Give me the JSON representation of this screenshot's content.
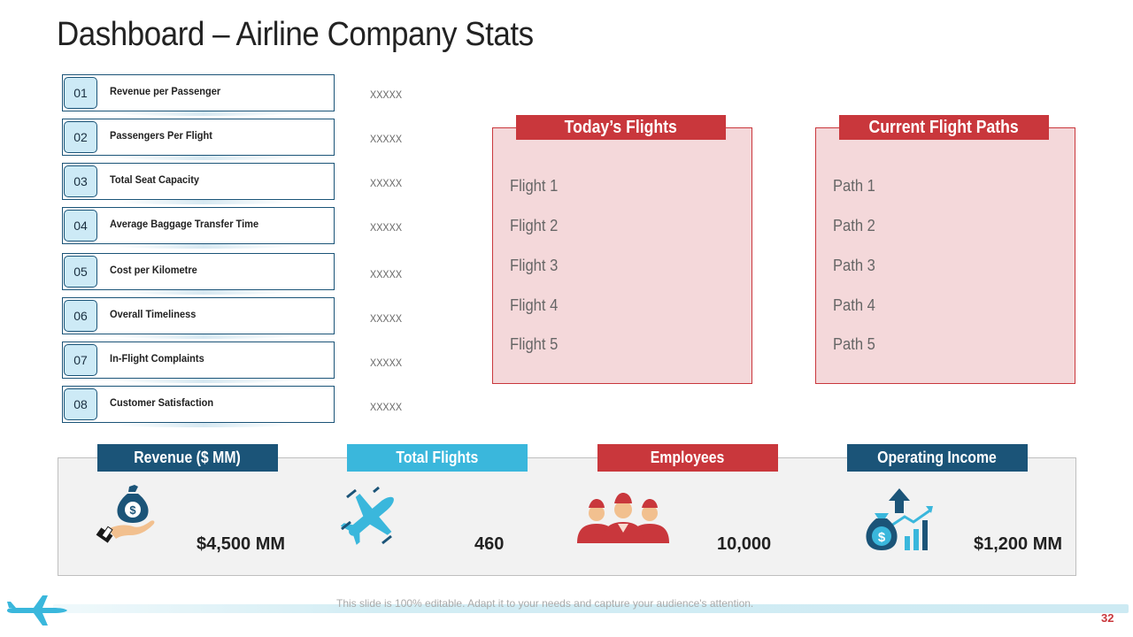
{
  "title": "Dashboard – Airline Company Stats",
  "kpis": [
    {
      "num": "01",
      "label": "Revenue per Passenger",
      "value": "XXXXX"
    },
    {
      "num": "02",
      "label": "Passengers Per Flight",
      "value": "XXXXX"
    },
    {
      "num": "03",
      "label": "Total Seat Capacity",
      "value": "XXXXX"
    },
    {
      "num": "04",
      "label": "Average Baggage Transfer Time",
      "value": "XXXXX"
    },
    {
      "num": "05",
      "label": "Cost per Kilometre",
      "value": "XXXXX"
    },
    {
      "num": "06",
      "label": "Overall Timeliness",
      "value": "XXXXX"
    },
    {
      "num": "07",
      "label": "In-Flight Complaints",
      "value": "XXXXX"
    },
    {
      "num": "08",
      "label": "Customer Satisfaction",
      "value": "XXXXX"
    }
  ],
  "flights_panel": {
    "heading": "Today’s Flights",
    "items": [
      "Flight 1",
      "Flight 2",
      "Flight 3",
      "Flight 4",
      "Flight 5"
    ]
  },
  "paths_panel": {
    "heading": "Current Flight Paths",
    "items": [
      "Path 1",
      "Path 2",
      "Path 3",
      "Path 4",
      "Path 5"
    ]
  },
  "stats": [
    {
      "label": "Revenue ($ MM)",
      "value": "$4,500 MM",
      "color": "#1b5478",
      "icon": "money-bag-hand-icon"
    },
    {
      "label": "Total Flights",
      "value": "460",
      "color": "#3ab7dc",
      "icon": "airplane-icon"
    },
    {
      "label": "Employees",
      "value": "10,000",
      "color": "#c9373c",
      "icon": "crew-group-icon"
    },
    {
      "label": "Operating Income",
      "value": "$1,200 MM",
      "color": "#1b5478",
      "icon": "money-growth-chart-icon"
    }
  ],
  "footer": {
    "text": "This slide is 100% editable. Adapt it to your needs and capture your audience's attention.",
    "page_number": "32"
  },
  "colors": {
    "accent_red": "#c9373c",
    "navy": "#1b5478",
    "sky": "#3ab7dc",
    "panel_fill": "#f4d8da"
  }
}
